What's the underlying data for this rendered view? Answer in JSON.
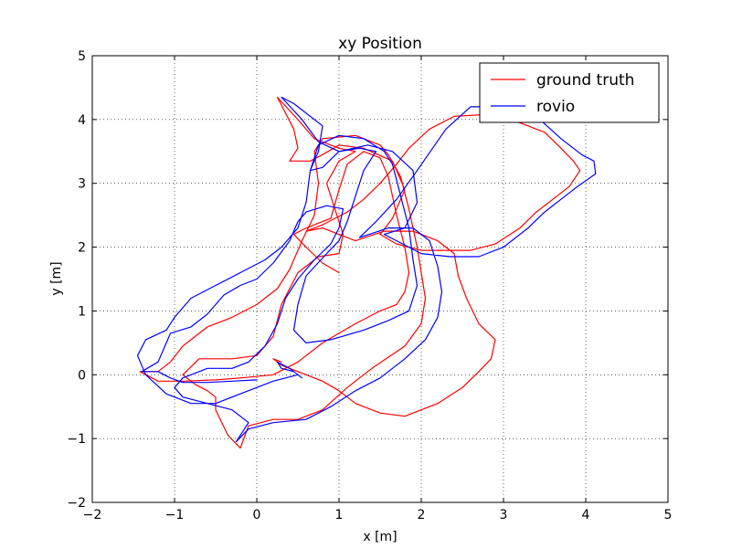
{
  "chart_data": {
    "type": "line",
    "title": "xy Position",
    "xlabel": "x [m]",
    "ylabel": "y [m]",
    "xlim": [
      -2,
      5
    ],
    "ylim": [
      -2,
      5
    ],
    "x_ticks": [
      -2,
      -1,
      0,
      1,
      2,
      3,
      4,
      5
    ],
    "y_ticks": [
      -2,
      -1,
      0,
      1,
      2,
      3,
      4,
      5
    ],
    "x_tick_labels": [
      "−2",
      "−1",
      "0",
      "1",
      "2",
      "3",
      "4",
      "5"
    ],
    "y_tick_labels": [
      "−2",
      "−1",
      "0",
      "1",
      "2",
      "3",
      "4",
      "5"
    ],
    "grid": true,
    "legend_position": "top-right",
    "series": [
      {
        "name": "ground truth",
        "color": "#ff0000",
        "points": [
          [
            0.3,
            0.2
          ],
          [
            0.2,
            0.25
          ],
          [
            0.3,
            0.15
          ],
          [
            0.4,
            0.1
          ],
          [
            0.6,
            0.0
          ],
          [
            0.8,
            -0.1
          ],
          [
            1.0,
            -0.25
          ],
          [
            1.2,
            -0.45
          ],
          [
            1.5,
            -0.6
          ],
          [
            1.8,
            -0.65
          ],
          [
            2.2,
            -0.45
          ],
          [
            2.5,
            -0.2
          ],
          [
            2.7,
            0.05
          ],
          [
            2.85,
            0.25
          ],
          [
            2.9,
            0.55
          ],
          [
            2.7,
            0.8
          ],
          [
            2.55,
            1.2
          ],
          [
            2.45,
            1.55
          ],
          [
            2.4,
            1.9
          ],
          [
            2.2,
            2.1
          ],
          [
            1.9,
            2.25
          ],
          [
            1.55,
            2.25
          ],
          [
            1.2,
            2.1
          ],
          [
            1.0,
            2.2
          ],
          [
            0.8,
            2.3
          ],
          [
            0.6,
            2.25
          ],
          [
            0.8,
            2.35
          ],
          [
            1.1,
            2.55
          ],
          [
            1.3,
            2.75
          ],
          [
            1.5,
            3.0
          ],
          [
            1.7,
            3.3
          ],
          [
            1.85,
            3.55
          ],
          [
            2.1,
            3.85
          ],
          [
            2.4,
            4.05
          ],
          [
            2.8,
            4.08
          ],
          [
            3.2,
            3.95
          ],
          [
            3.5,
            3.8
          ],
          [
            3.7,
            3.55
          ],
          [
            3.85,
            3.35
          ],
          [
            3.93,
            3.2
          ],
          [
            3.8,
            2.95
          ],
          [
            3.6,
            2.75
          ],
          [
            3.4,
            2.55
          ],
          [
            3.2,
            2.3
          ],
          [
            2.9,
            2.05
          ],
          [
            2.6,
            1.95
          ],
          [
            2.25,
            1.95
          ],
          [
            2.0,
            1.95
          ],
          [
            1.7,
            2.05
          ],
          [
            1.5,
            2.2
          ],
          [
            1.65,
            2.45
          ],
          [
            1.8,
            2.9
          ],
          [
            1.65,
            3.35
          ],
          [
            1.3,
            3.55
          ],
          [
            1.0,
            3.6
          ],
          [
            0.8,
            3.45
          ],
          [
            0.65,
            3.35
          ],
          [
            0.55,
            3.35
          ],
          [
            0.4,
            3.35
          ],
          [
            0.5,
            3.55
          ],
          [
            0.45,
            3.85
          ],
          [
            0.25,
            4.35
          ],
          [
            0.5,
            4.0
          ],
          [
            0.7,
            3.7
          ],
          [
            1.0,
            3.55
          ],
          [
            1.2,
            3.5
          ],
          [
            1.0,
            3.35
          ],
          [
            0.85,
            3.0
          ],
          [
            0.95,
            2.6
          ],
          [
            1.05,
            2.2
          ],
          [
            1.0,
            1.9
          ],
          [
            0.75,
            1.85
          ],
          [
            0.5,
            1.6
          ],
          [
            0.3,
            1.1
          ],
          [
            0.2,
            0.6
          ],
          [
            0.0,
            0.3
          ],
          [
            -0.3,
            0.25
          ],
          [
            -0.7,
            0.25
          ],
          [
            -0.9,
            0.0
          ],
          [
            -0.75,
            -0.15
          ],
          [
            -0.6,
            -0.25
          ],
          [
            -0.5,
            -0.35
          ],
          [
            -0.5,
            -0.55
          ],
          [
            -0.35,
            -0.95
          ],
          [
            -0.2,
            -1.15
          ],
          [
            -0.1,
            -0.8
          ],
          [
            0.2,
            -0.7
          ],
          [
            0.5,
            -0.7
          ],
          [
            0.8,
            -0.55
          ],
          [
            1.1,
            -0.2
          ],
          [
            1.4,
            0.1
          ],
          [
            1.8,
            0.45
          ],
          [
            2.0,
            0.8
          ],
          [
            2.05,
            1.2
          ],
          [
            2.0,
            1.6
          ],
          [
            1.95,
            2.0
          ],
          [
            1.85,
            2.6
          ],
          [
            1.75,
            3.1
          ],
          [
            1.6,
            3.45
          ],
          [
            1.5,
            3.6
          ],
          [
            1.2,
            3.75
          ],
          [
            0.8,
            3.7
          ],
          [
            0.7,
            3.5
          ],
          [
            0.75,
            3.0
          ],
          [
            0.7,
            2.5
          ],
          [
            0.55,
            2.1
          ],
          [
            0.4,
            1.65
          ],
          [
            0.25,
            1.35
          ],
          [
            0.0,
            1.1
          ],
          [
            -0.3,
            0.9
          ],
          [
            -0.6,
            0.75
          ],
          [
            -0.9,
            0.45
          ],
          [
            -1.05,
            0.2
          ],
          [
            -1.2,
            0.05
          ],
          [
            -1.42,
            0.05
          ],
          [
            -1.2,
            -0.1
          ],
          [
            -0.9,
            -0.1
          ],
          [
            -0.5,
            -0.08
          ],
          [
            -0.2,
            -0.05
          ],
          [
            0.2,
            0.0
          ],
          [
            0.5,
            0.2
          ],
          [
            0.8,
            0.5
          ],
          [
            1.2,
            0.8
          ],
          [
            1.5,
            1.0
          ],
          [
            1.7,
            1.1
          ],
          [
            1.8,
            1.3
          ],
          [
            1.85,
            1.6
          ],
          [
            1.8,
            2.0
          ],
          [
            1.7,
            2.5
          ],
          [
            1.6,
            3.1
          ],
          [
            1.5,
            3.4
          ],
          [
            1.3,
            3.5
          ],
          [
            1.1,
            3.3
          ],
          [
            1.0,
            2.9
          ],
          [
            0.9,
            2.45
          ],
          [
            0.6,
            2.3
          ],
          [
            0.45,
            2.2
          ],
          [
            0.6,
            2.0
          ],
          [
            0.8,
            1.75
          ],
          [
            1.0,
            1.6
          ]
        ]
      },
      {
        "name": "rovio",
        "color": "#0000ff",
        "points": [
          [
            0.0,
            -0.08
          ],
          [
            -0.3,
            -0.1
          ],
          [
            -0.6,
            -0.12
          ],
          [
            -0.9,
            -0.12
          ],
          [
            -1.05,
            -0.05
          ],
          [
            -1.2,
            0.05
          ],
          [
            -1.4,
            0.05
          ],
          [
            -1.2,
            0.2
          ],
          [
            -1.1,
            0.5
          ],
          [
            -1.05,
            0.65
          ],
          [
            -0.8,
            0.75
          ],
          [
            -0.6,
            0.95
          ],
          [
            -0.4,
            1.25
          ],
          [
            -0.2,
            1.4
          ],
          [
            0.0,
            1.5
          ],
          [
            0.2,
            1.75
          ],
          [
            0.4,
            2.1
          ],
          [
            0.5,
            2.4
          ],
          [
            0.6,
            2.55
          ],
          [
            0.85,
            2.65
          ],
          [
            1.05,
            2.6
          ],
          [
            1.0,
            2.3
          ],
          [
            0.9,
            2.05
          ],
          [
            0.7,
            1.8
          ],
          [
            0.5,
            1.5
          ],
          [
            0.35,
            1.2
          ],
          [
            0.25,
            0.8
          ],
          [
            0.1,
            0.45
          ],
          [
            -0.1,
            0.2
          ],
          [
            -0.3,
            0.1
          ],
          [
            -0.6,
            0.1
          ],
          [
            -0.9,
            -0.05
          ],
          [
            -1.0,
            -0.2
          ],
          [
            -0.9,
            -0.35
          ],
          [
            -0.6,
            -0.45
          ],
          [
            -0.3,
            -0.55
          ],
          [
            -0.1,
            -0.75
          ],
          [
            -0.25,
            -1.05
          ],
          [
            -0.1,
            -0.85
          ],
          [
            0.2,
            -0.75
          ],
          [
            0.6,
            -0.7
          ],
          [
            0.9,
            -0.5
          ],
          [
            1.2,
            -0.25
          ],
          [
            1.5,
            -0.05
          ],
          [
            1.8,
            0.25
          ],
          [
            2.05,
            0.55
          ],
          [
            2.2,
            0.9
          ],
          [
            2.25,
            1.3
          ],
          [
            2.2,
            1.7
          ],
          [
            2.1,
            2.1
          ],
          [
            1.9,
            2.3
          ],
          [
            1.6,
            2.3
          ],
          [
            1.25,
            2.15
          ],
          [
            1.45,
            2.4
          ],
          [
            1.7,
            2.75
          ],
          [
            1.95,
            3.2
          ],
          [
            2.3,
            3.85
          ],
          [
            2.6,
            4.2
          ],
          [
            3.0,
            4.2
          ],
          [
            3.4,
            4.05
          ],
          [
            3.7,
            3.7
          ],
          [
            3.95,
            3.45
          ],
          [
            4.1,
            3.35
          ],
          [
            4.12,
            3.15
          ],
          [
            3.9,
            2.95
          ],
          [
            3.7,
            2.75
          ],
          [
            3.5,
            2.55
          ],
          [
            3.3,
            2.3
          ],
          [
            3.0,
            2.0
          ],
          [
            2.7,
            1.85
          ],
          [
            2.35,
            1.85
          ],
          [
            2.0,
            1.9
          ],
          [
            1.7,
            2.1
          ],
          [
            1.55,
            2.2
          ],
          [
            1.8,
            2.3
          ],
          [
            1.95,
            2.7
          ],
          [
            1.9,
            3.2
          ],
          [
            1.65,
            3.5
          ],
          [
            1.35,
            3.6
          ],
          [
            1.0,
            3.5
          ],
          [
            0.8,
            3.25
          ],
          [
            0.65,
            3.2
          ],
          [
            0.75,
            3.5
          ],
          [
            0.8,
            3.9
          ],
          [
            0.45,
            4.25
          ],
          [
            0.3,
            4.35
          ],
          [
            0.55,
            4.0
          ],
          [
            0.75,
            3.65
          ],
          [
            1.0,
            3.5
          ],
          [
            1.25,
            3.55
          ],
          [
            1.45,
            3.5
          ],
          [
            1.3,
            3.2
          ],
          [
            1.2,
            2.8
          ],
          [
            1.1,
            2.4
          ],
          [
            1.0,
            2.1
          ],
          [
            0.85,
            1.9
          ],
          [
            0.6,
            1.55
          ],
          [
            0.5,
            1.1
          ],
          [
            0.45,
            0.7
          ],
          [
            0.6,
            0.5
          ],
          [
            0.9,
            0.55
          ],
          [
            1.3,
            0.7
          ],
          [
            1.6,
            0.85
          ],
          [
            1.85,
            1.0
          ],
          [
            1.95,
            1.4
          ],
          [
            1.9,
            1.8
          ],
          [
            1.85,
            2.3
          ],
          [
            1.75,
            2.8
          ],
          [
            1.65,
            3.3
          ],
          [
            1.55,
            3.5
          ],
          [
            1.3,
            3.7
          ],
          [
            1.0,
            3.75
          ],
          [
            0.75,
            3.6
          ],
          [
            0.65,
            3.2
          ],
          [
            0.6,
            2.7
          ],
          [
            0.5,
            2.3
          ],
          [
            0.3,
            2.0
          ],
          [
            0.1,
            1.8
          ],
          [
            -0.2,
            1.6
          ],
          [
            -0.5,
            1.4
          ],
          [
            -0.8,
            1.2
          ],
          [
            -1.0,
            0.9
          ],
          [
            -1.1,
            0.7
          ],
          [
            -1.35,
            0.55
          ],
          [
            -1.45,
            0.3
          ],
          [
            -1.35,
            0.0
          ],
          [
            -1.1,
            -0.3
          ],
          [
            -0.8,
            -0.45
          ],
          [
            -0.5,
            -0.45
          ],
          [
            -0.2,
            -0.3
          ],
          [
            0.2,
            -0.1
          ],
          [
            0.5,
            0.0
          ],
          [
            0.55,
            -0.05
          ],
          [
            0.4,
            0.1
          ],
          [
            0.25,
            0.2
          ],
          [
            0.3,
            0.1
          ],
          [
            0.45,
            0.05
          ]
        ]
      }
    ]
  }
}
